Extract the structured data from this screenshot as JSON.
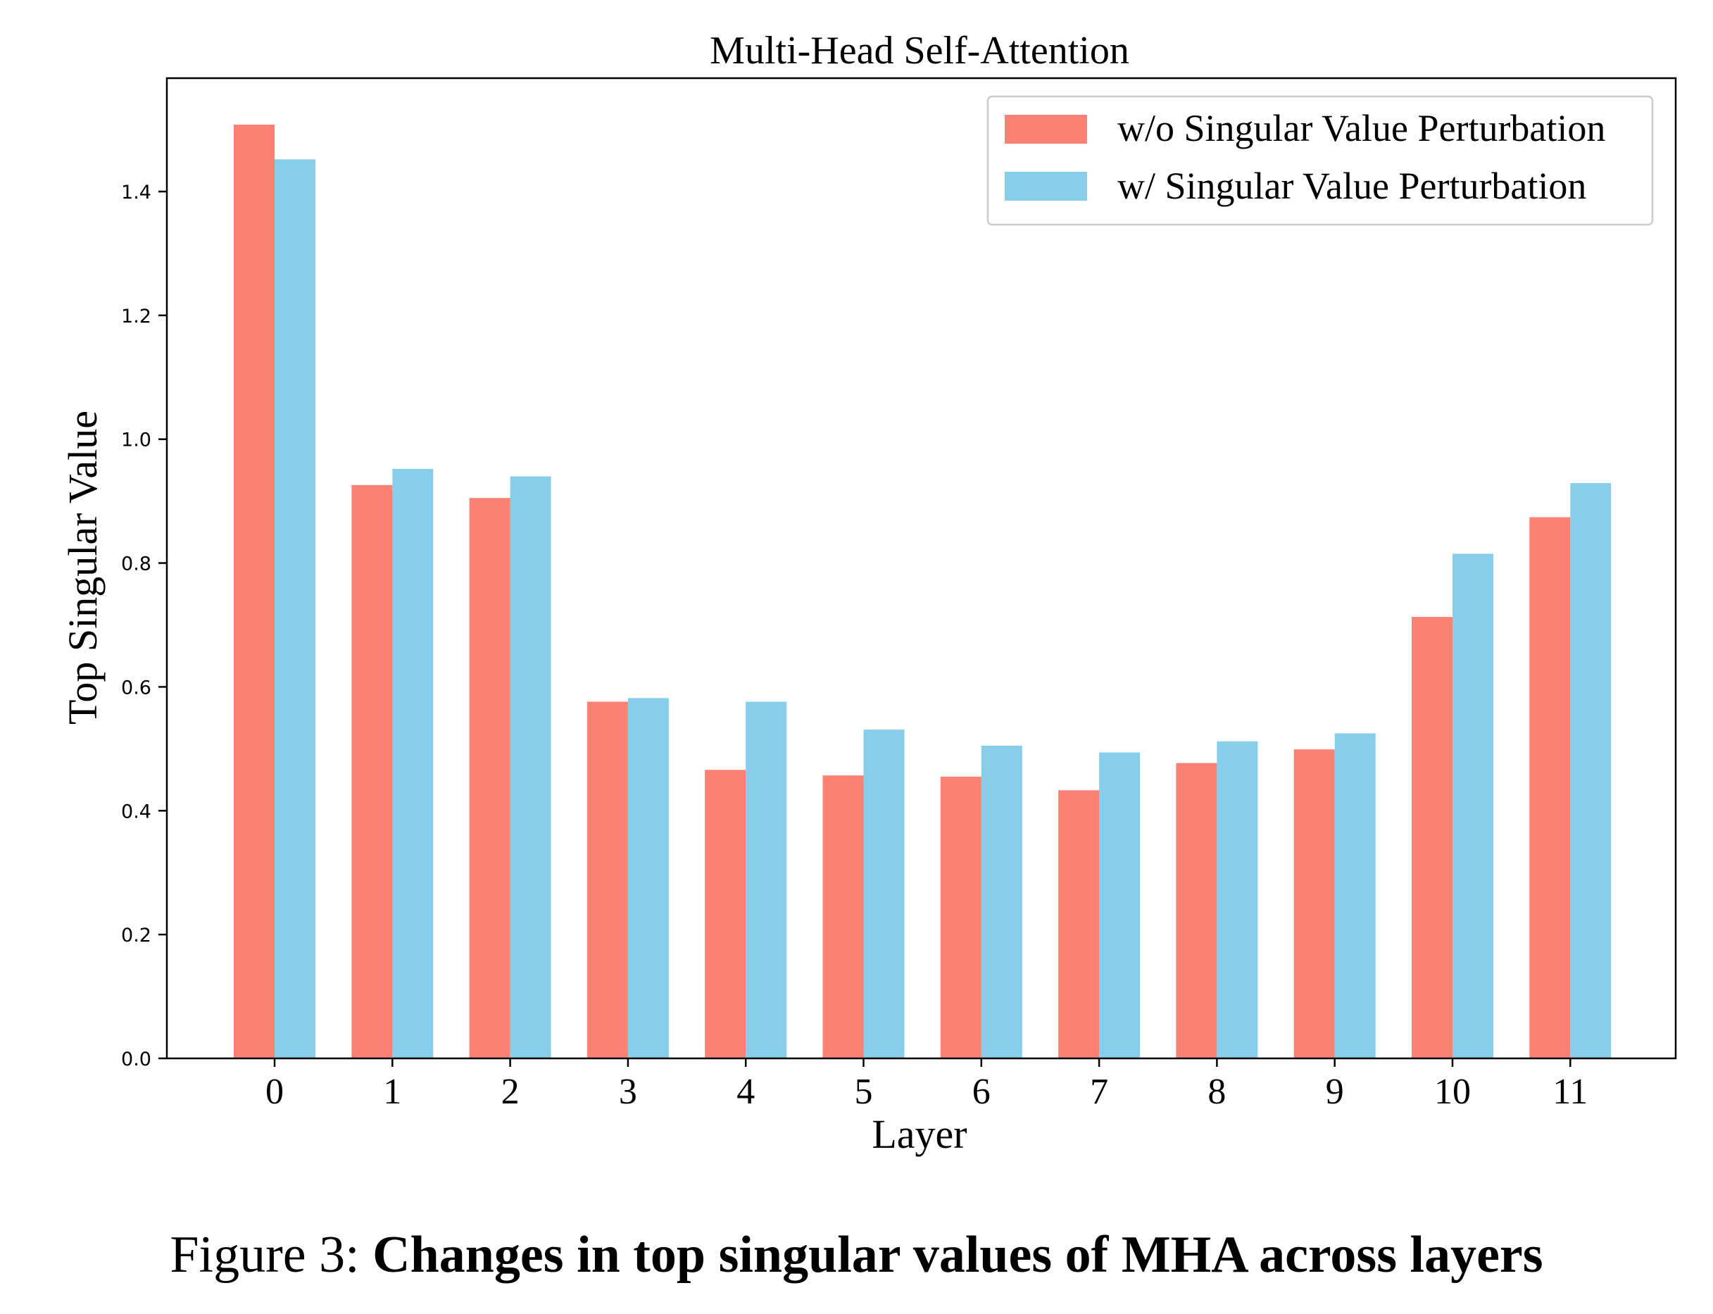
{
  "chart_data": {
    "type": "bar",
    "title": "Multi-Head Self-Attention",
    "xlabel": "Layer",
    "ylabel": "Top Singular Value",
    "categories": [
      "0",
      "1",
      "2",
      "3",
      "4",
      "5",
      "6",
      "7",
      "8",
      "9",
      "10",
      "11"
    ],
    "ylim": [
      0,
      1.58
    ],
    "yticks": [
      "0.0",
      "0.2",
      "0.4",
      "0.6",
      "0.8",
      "1.0",
      "1.2",
      "1.4"
    ],
    "ytick_values": [
      0.0,
      0.2,
      0.4,
      0.6,
      0.8,
      1.0,
      1.2,
      1.4
    ],
    "grid": false,
    "legend_position": "top-right",
    "series": [
      {
        "name": "w/o Singular Value Perturbation",
        "color": "#fa8174",
        "values": [
          1.508,
          0.926,
          0.905,
          0.576,
          0.466,
          0.457,
          0.455,
          0.433,
          0.477,
          0.499,
          0.713,
          0.874
        ]
      },
      {
        "name": "w/ Singular Value Perturbation",
        "color": "#87ceeb",
        "values": [
          1.452,
          0.952,
          0.94,
          0.582,
          0.576,
          0.531,
          0.505,
          0.494,
          0.512,
          0.525,
          0.815,
          0.929
        ]
      }
    ]
  },
  "caption": {
    "prefix": "Figure 3:",
    "bold": "Changes in top singular values of MHA across layers"
  }
}
